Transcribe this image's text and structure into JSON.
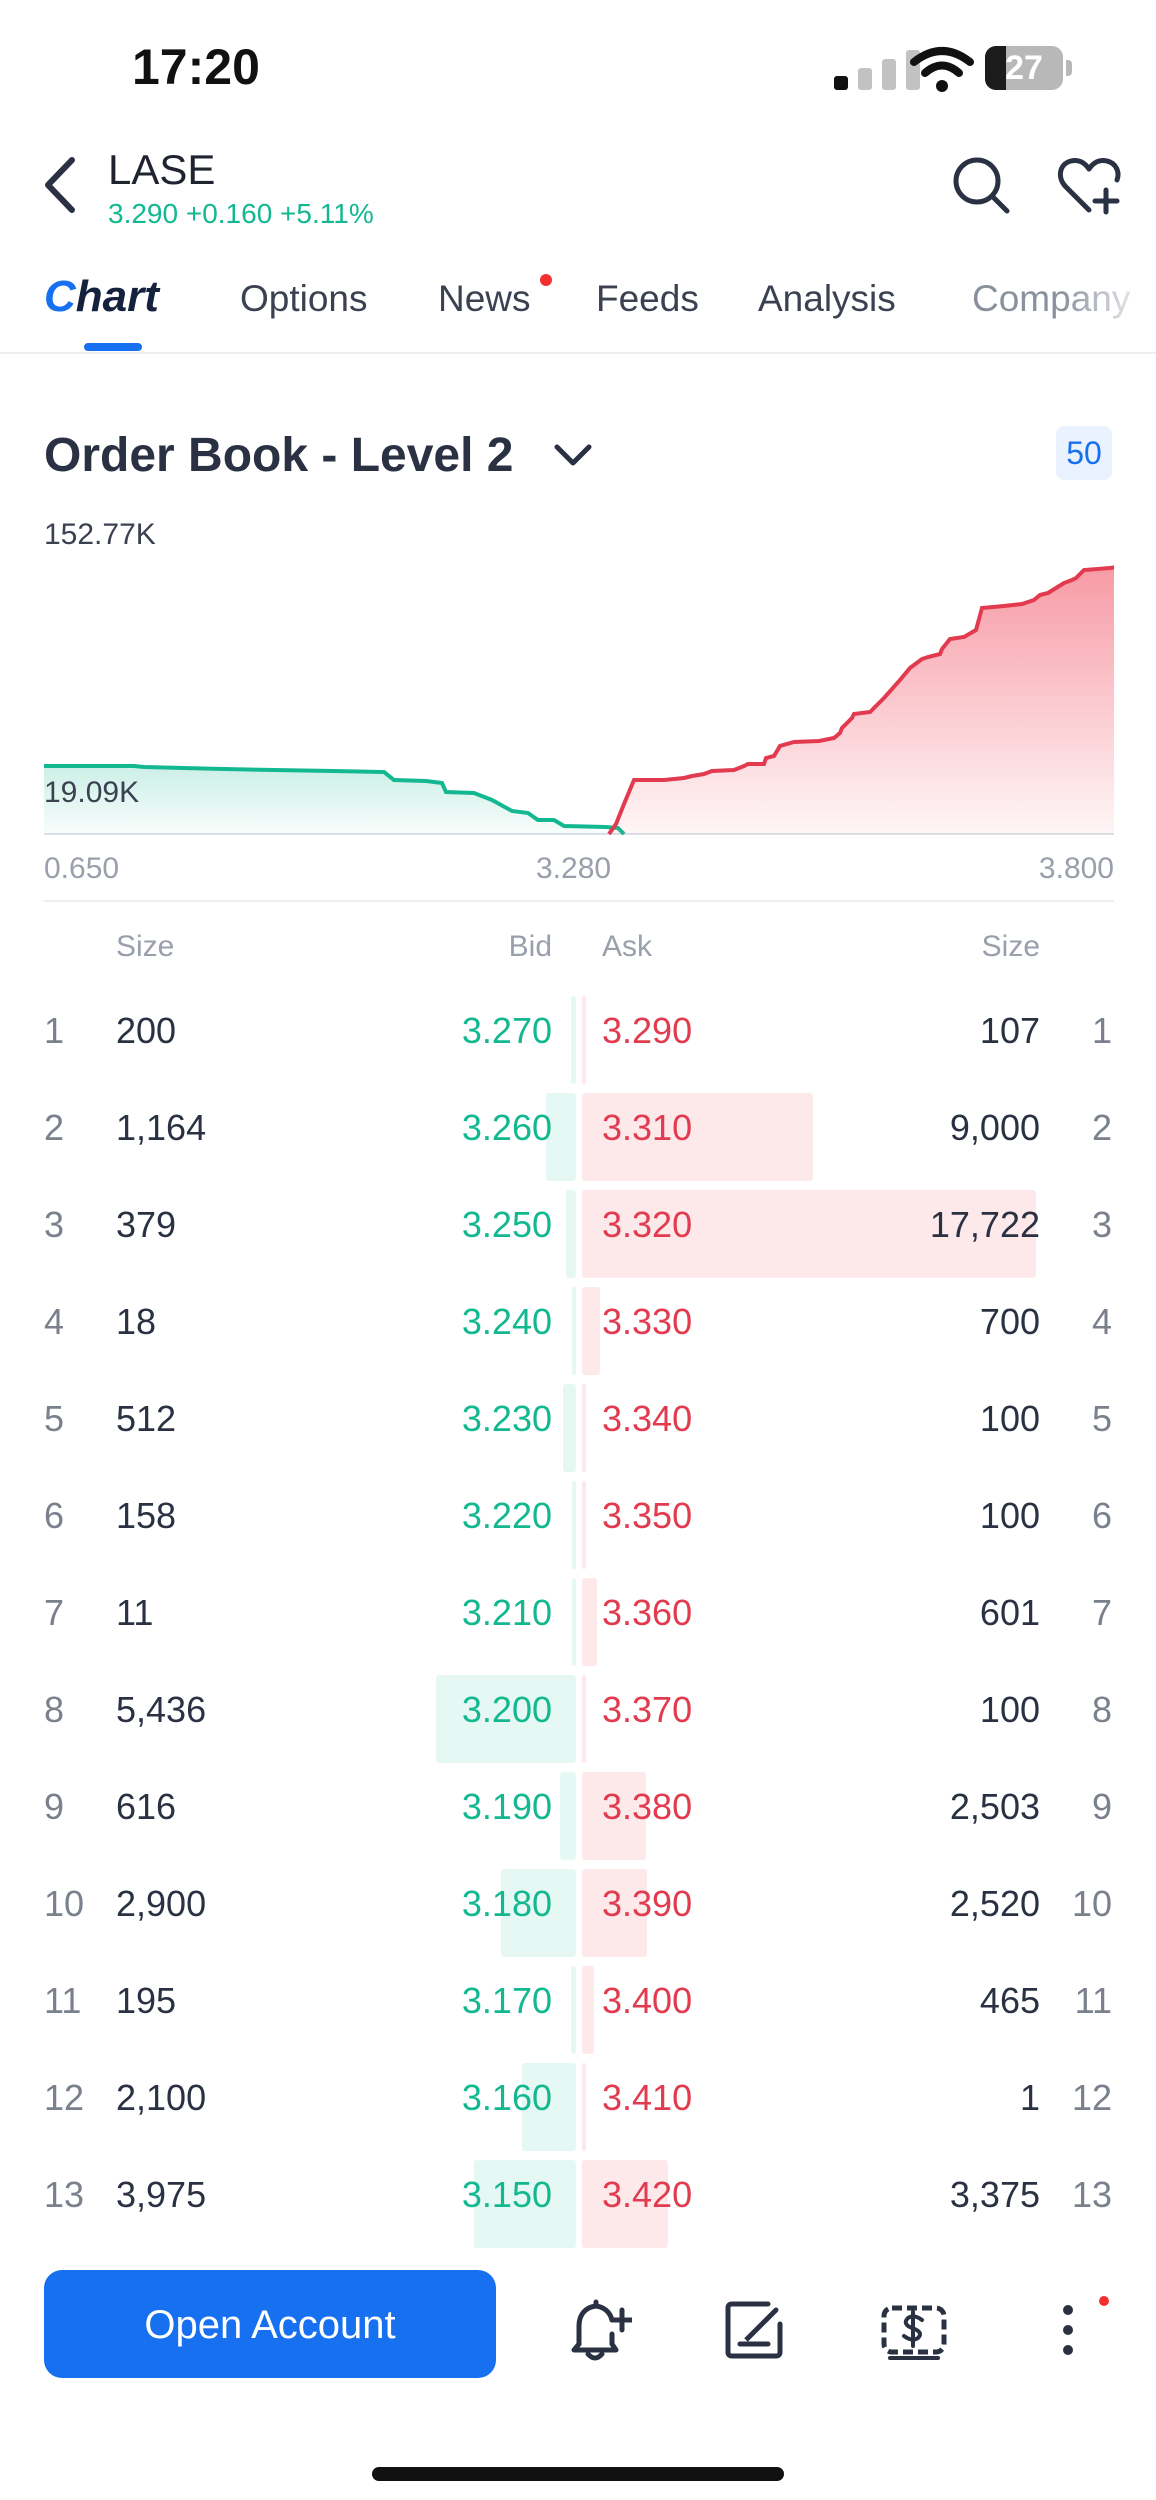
{
  "status_bar": {
    "time": "17:20",
    "battery": "27",
    "battery_level": 0.27
  },
  "header": {
    "ticker": "LASE",
    "quote": "3.290 +0.160 +5.11%",
    "colors": {
      "up": "#14b890",
      "down": "#e23a4e",
      "accent": "#1670f0"
    }
  },
  "tabs": [
    {
      "label": "Chart",
      "active": true
    },
    {
      "label": "Options"
    },
    {
      "label": "News",
      "has_dot": true
    },
    {
      "label": "Feeds"
    },
    {
      "label": "Analysis"
    },
    {
      "label": "Company"
    }
  ],
  "order_book": {
    "title": "Order Book - Level 2",
    "depth_badge": "50",
    "chart_labels": {
      "y_max": "152.77K",
      "y_min": "19.09K",
      "x_left": "0.650",
      "x_mid": "3.280",
      "x_right": "3.800"
    },
    "columns": {
      "bid_size": "Size",
      "bid": "Bid",
      "ask": "Ask",
      "ask_size": "Size"
    },
    "rows": [
      {
        "level": "1",
        "bid_size": "200",
        "bid": "3.270",
        "ask": "3.290",
        "ask_size": "107"
      },
      {
        "level": "2",
        "bid_size": "1,164",
        "bid": "3.260",
        "ask": "3.310",
        "ask_size": "9,000"
      },
      {
        "level": "3",
        "bid_size": "379",
        "bid": "3.250",
        "ask": "3.320",
        "ask_size": "17,722"
      },
      {
        "level": "4",
        "bid_size": "18",
        "bid": "3.240",
        "ask": "3.330",
        "ask_size": "700"
      },
      {
        "level": "5",
        "bid_size": "512",
        "bid": "3.230",
        "ask": "3.340",
        "ask_size": "100"
      },
      {
        "level": "6",
        "bid_size": "158",
        "bid": "3.220",
        "ask": "3.350",
        "ask_size": "100"
      },
      {
        "level": "7",
        "bid_size": "11",
        "bid": "3.210",
        "ask": "3.360",
        "ask_size": "601"
      },
      {
        "level": "8",
        "bid_size": "5,436",
        "bid": "3.200",
        "ask": "3.370",
        "ask_size": "100"
      },
      {
        "level": "9",
        "bid_size": "616",
        "bid": "3.190",
        "ask": "3.380",
        "ask_size": "2,503"
      },
      {
        "level": "10",
        "bid_size": "2,900",
        "bid": "3.180",
        "ask": "3.390",
        "ask_size": "2,520"
      },
      {
        "level": "11",
        "bid_size": "195",
        "bid": "3.170",
        "ask": "3.400",
        "ask_size": "465"
      },
      {
        "level": "12",
        "bid_size": "2,100",
        "bid": "3.160",
        "ask": "3.410",
        "ask_size": "1"
      },
      {
        "level": "13",
        "bid_size": "3,975",
        "bid": "3.150",
        "ask": "3.420",
        "ask_size": "3,375"
      }
    ]
  },
  "bottom_bar": {
    "open_account": "Open Account",
    "icons": [
      "add-alert-icon",
      "edit-note-icon",
      "trade-icon",
      "more-icon"
    ]
  }
}
